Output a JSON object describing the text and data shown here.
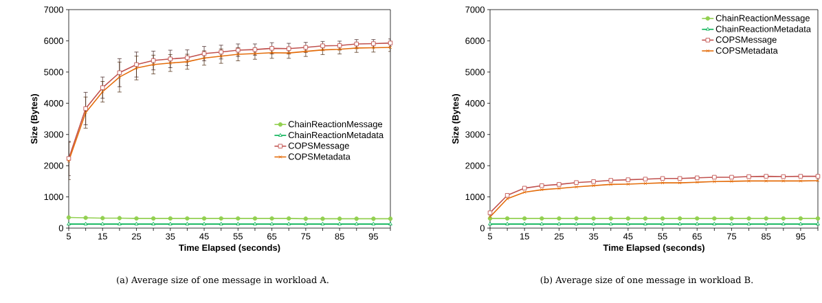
{
  "chart_data": [
    {
      "type": "line",
      "title": "(a) Average size of one message in workload A.",
      "xlabel": "Time Elapsed (seconds)",
      "ylabel": "Size (Bytes)",
      "x": [
        5,
        10,
        15,
        20,
        25,
        30,
        35,
        40,
        45,
        50,
        55,
        60,
        65,
        70,
        75,
        80,
        85,
        90,
        95,
        100
      ],
      "xlim": [
        5,
        100
      ],
      "ylim": [
        0,
        7000
      ],
      "yticks": [
        0,
        1000,
        2000,
        3000,
        4000,
        5000,
        6000,
        7000
      ],
      "xticks": [
        5,
        {
          "value": 10,
          "label": null
        },
        15,
        {
          "value": 20,
          "label": null
        },
        25,
        {
          "value": 30,
          "label": null
        },
        35,
        {
          "value": 40,
          "label": null
        },
        45,
        {
          "value": 50,
          "label": null
        },
        55,
        {
          "value": 60,
          "label": null
        },
        65,
        {
          "value": 70,
          "label": null
        },
        75,
        {
          "value": 80,
          "label": null
        },
        85,
        {
          "value": 90,
          "label": null
        },
        95,
        {
          "value": 100,
          "label": null
        }
      ],
      "legend": "right",
      "series": [
        {
          "name": "ChainReactionMessage",
          "color": "#92d050",
          "marker": "circle",
          "values": [
            340,
            330,
            320,
            320,
            310,
            310,
            310,
            310,
            310,
            310,
            310,
            310,
            310,
            310,
            300,
            300,
            300,
            300,
            300,
            300
          ]
        },
        {
          "name": "ChainReactionMetadata",
          "color": "#00b050",
          "marker": "triangle",
          "values": [
            130,
            130,
            130,
            130,
            130,
            130,
            130,
            130,
            130,
            130,
            130,
            130,
            130,
            130,
            130,
            130,
            130,
            130,
            130,
            130
          ]
        },
        {
          "name": "COPSMessage",
          "color": "#c0504d",
          "marker": "square",
          "values": [
            2230,
            3830,
            4500,
            4980,
            5240,
            5370,
            5420,
            5460,
            5590,
            5640,
            5700,
            5720,
            5760,
            5750,
            5790,
            5840,
            5850,
            5900,
            5910,
            5930
          ],
          "errors": [
            550,
            520,
            340,
            450,
            400,
            300,
            280,
            250,
            230,
            220,
            200,
            180,
            180,
            170,
            160,
            140,
            140,
            140,
            130,
            130
          ]
        },
        {
          "name": "COPSMetadata",
          "color": "#e46c0a",
          "marker": "cross",
          "values": [
            2150,
            3700,
            4370,
            4840,
            5130,
            5240,
            5290,
            5330,
            5450,
            5510,
            5570,
            5590,
            5620,
            5610,
            5660,
            5710,
            5730,
            5770,
            5780,
            5790
          ],
          "errors": [
            600,
            500,
            330,
            480,
            380,
            300,
            270,
            240,
            230,
            230,
            210,
            180,
            180,
            170,
            160,
            150,
            150,
            140,
            140,
            130
          ]
        }
      ]
    },
    {
      "type": "line",
      "title": "(b) Average size of one message in workload B.",
      "xlabel": "Time Elapsed (seconds)",
      "ylabel": "Size (Bytes)",
      "x": [
        5,
        10,
        15,
        20,
        25,
        30,
        35,
        40,
        45,
        50,
        55,
        60,
        65,
        70,
        75,
        80,
        85,
        90,
        95,
        100
      ],
      "xlim": [
        5,
        100
      ],
      "ylim": [
        0,
        7000
      ],
      "yticks": [
        0,
        1000,
        2000,
        3000,
        4000,
        5000,
        6000,
        7000
      ],
      "xticks": [
        5,
        {
          "value": 10,
          "label": null
        },
        15,
        {
          "value": 20,
          "label": null
        },
        25,
        {
          "value": 30,
          "label": null
        },
        35,
        {
          "value": 40,
          "label": null
        },
        45,
        {
          "value": 50,
          "label": null
        },
        55,
        {
          "value": 60,
          "label": null
        },
        65,
        {
          "value": 70,
          "label": null
        },
        75,
        {
          "value": 80,
          "label": null
        },
        85,
        {
          "value": 90,
          "label": null
        },
        95,
        {
          "value": 100,
          "label": null
        }
      ],
      "legend": "top right",
      "series": [
        {
          "name": "ChainReactionMessage",
          "color": "#92d050",
          "marker": "circle",
          "values": [
            310,
            310,
            310,
            310,
            310,
            310,
            310,
            310,
            310,
            310,
            310,
            310,
            310,
            310,
            310,
            310,
            310,
            310,
            310,
            310
          ]
        },
        {
          "name": "ChainReactionMetadata",
          "color": "#00b050",
          "marker": "triangle",
          "values": [
            130,
            130,
            130,
            130,
            130,
            130,
            130,
            130,
            130,
            130,
            130,
            130,
            130,
            130,
            130,
            130,
            130,
            130,
            130,
            130
          ]
        },
        {
          "name": "COPSMessage",
          "color": "#c0504d",
          "marker": "square",
          "values": [
            490,
            1050,
            1280,
            1360,
            1400,
            1460,
            1490,
            1530,
            1550,
            1570,
            1590,
            1590,
            1610,
            1630,
            1630,
            1650,
            1660,
            1650,
            1660,
            1660
          ]
        },
        {
          "name": "COPSMetadata",
          "color": "#e46c0a",
          "marker": "cross",
          "values": [
            360,
            940,
            1150,
            1230,
            1270,
            1320,
            1360,
            1400,
            1410,
            1430,
            1450,
            1450,
            1470,
            1490,
            1500,
            1510,
            1510,
            1510,
            1510,
            1520
          ]
        }
      ]
    }
  ]
}
